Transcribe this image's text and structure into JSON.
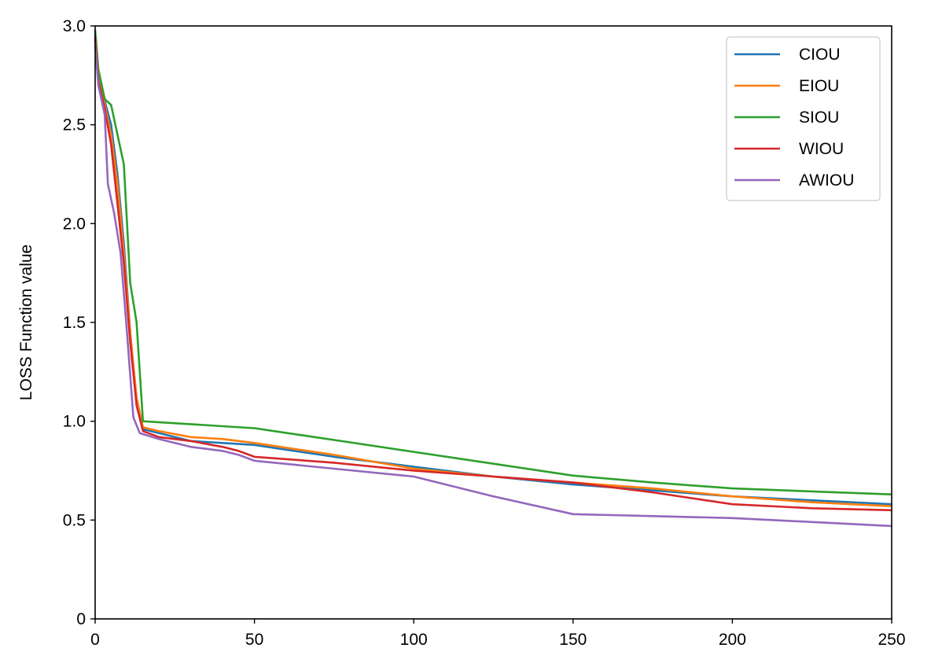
{
  "chart_data": {
    "type": "line",
    "title": "",
    "xlabel": "",
    "ylabel": "LOSS Function value",
    "xlim": [
      0,
      250
    ],
    "ylim": [
      0,
      3.0
    ],
    "x_ticks": [
      0,
      50,
      100,
      150,
      200,
      250
    ],
    "x_tick_labels": [
      "0",
      "50",
      "100",
      "150",
      "200",
      "250"
    ],
    "y_ticks": [
      0,
      0.5,
      1.0,
      1.5,
      2.0,
      2.5,
      3.0
    ],
    "y_tick_labels": [
      "0",
      "0.5",
      "1.0",
      "1.5",
      "2.0",
      "2.5",
      "3.0"
    ],
    "grid": false,
    "legend_position": "top-right",
    "series": [
      {
        "name": "CIOU",
        "color": "#1f77b4",
        "points": [
          [
            0,
            2.95
          ],
          [
            1,
            2.75
          ],
          [
            3,
            2.62
          ],
          [
            5,
            2.5
          ],
          [
            7,
            2.25
          ],
          [
            9,
            1.9
          ],
          [
            11,
            1.45
          ],
          [
            13,
            1.1
          ],
          [
            15,
            0.96
          ],
          [
            20,
            0.94
          ],
          [
            30,
            0.9
          ],
          [
            40,
            0.89
          ],
          [
            50,
            0.88
          ],
          [
            75,
            0.82
          ],
          [
            100,
            0.77
          ],
          [
            125,
            0.72
          ],
          [
            150,
            0.68
          ],
          [
            175,
            0.65
          ],
          [
            200,
            0.62
          ],
          [
            225,
            0.6
          ],
          [
            250,
            0.58
          ]
        ]
      },
      {
        "name": "EIOU",
        "color": "#ff7f0e",
        "points": [
          [
            0,
            2.93
          ],
          [
            1,
            2.73
          ],
          [
            3,
            2.6
          ],
          [
            5,
            2.45
          ],
          [
            7,
            2.2
          ],
          [
            9,
            1.85
          ],
          [
            11,
            1.45
          ],
          [
            13,
            1.12
          ],
          [
            15,
            0.97
          ],
          [
            20,
            0.95
          ],
          [
            30,
            0.92
          ],
          [
            40,
            0.91
          ],
          [
            50,
            0.89
          ],
          [
            75,
            0.83
          ],
          [
            100,
            0.76
          ],
          [
            125,
            0.72
          ],
          [
            150,
            0.69
          ],
          [
            175,
            0.66
          ],
          [
            200,
            0.62
          ],
          [
            225,
            0.59
          ],
          [
            250,
            0.57
          ]
        ]
      },
      {
        "name": "SIOU",
        "color": "#2ca02c",
        "points": [
          [
            0,
            2.98
          ],
          [
            1,
            2.78
          ],
          [
            3,
            2.63
          ],
          [
            5,
            2.6
          ],
          [
            7,
            2.45
          ],
          [
            9,
            2.3
          ],
          [
            11,
            1.7
          ],
          [
            13,
            1.5
          ],
          [
            15,
            1.0
          ],
          [
            20,
            0.995
          ],
          [
            30,
            0.985
          ],
          [
            40,
            0.975
          ],
          [
            50,
            0.965
          ],
          [
            75,
            0.905
          ],
          [
            100,
            0.845
          ],
          [
            125,
            0.785
          ],
          [
            150,
            0.725
          ],
          [
            175,
            0.69
          ],
          [
            200,
            0.66
          ],
          [
            225,
            0.645
          ],
          [
            250,
            0.63
          ]
        ]
      },
      {
        "name": "WIOU",
        "color": "#d62728",
        "points": [
          [
            0,
            2.94
          ],
          [
            1,
            2.72
          ],
          [
            3,
            2.58
          ],
          [
            5,
            2.4
          ],
          [
            7,
            2.1
          ],
          [
            9,
            1.8
          ],
          [
            11,
            1.4
          ],
          [
            13,
            1.08
          ],
          [
            15,
            0.95
          ],
          [
            20,
            0.92
          ],
          [
            30,
            0.9
          ],
          [
            40,
            0.87
          ],
          [
            45,
            0.85
          ],
          [
            50,
            0.82
          ],
          [
            75,
            0.79
          ],
          [
            100,
            0.75
          ],
          [
            125,
            0.72
          ],
          [
            150,
            0.69
          ],
          [
            175,
            0.64
          ],
          [
            200,
            0.58
          ],
          [
            225,
            0.56
          ],
          [
            250,
            0.55
          ]
        ]
      },
      {
        "name": "AWIOU",
        "color": "#9467bd",
        "points": [
          [
            0,
            2.9
          ],
          [
            1,
            2.7
          ],
          [
            3,
            2.55
          ],
          [
            4,
            2.2
          ],
          [
            6,
            2.05
          ],
          [
            8,
            1.85
          ],
          [
            10,
            1.45
          ],
          [
            12,
            1.02
          ],
          [
            14,
            0.94
          ],
          [
            20,
            0.91
          ],
          [
            30,
            0.87
          ],
          [
            40,
            0.85
          ],
          [
            45,
            0.83
          ],
          [
            50,
            0.8
          ],
          [
            75,
            0.76
          ],
          [
            100,
            0.72
          ],
          [
            125,
            0.62
          ],
          [
            150,
            0.53
          ],
          [
            175,
            0.52
          ],
          [
            200,
            0.51
          ],
          [
            225,
            0.49
          ],
          [
            250,
            0.47
          ]
        ]
      }
    ]
  }
}
